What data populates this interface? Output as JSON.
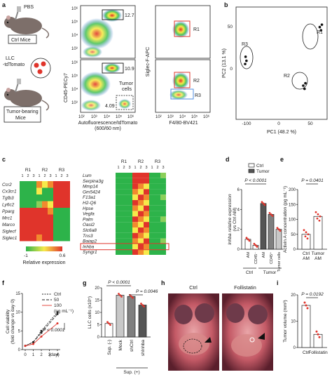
{
  "panel_letters": [
    "a",
    "b",
    "c",
    "d",
    "e",
    "f",
    "g",
    "h",
    "i"
  ],
  "panel_a": {
    "mouse_labels": [
      "PBS",
      "LLC\n-tdTomato"
    ],
    "box_labels": [
      "Ctrl Mice",
      "Tumor-bearing\nMice"
    ],
    "flow_axes": {
      "x1": "Autofluorescence/tdTomato",
      "x1b": "(600/60 nm)",
      "y1": "CD45-PECy7",
      "x2": "F4/80-BV421",
      "y2": "Siglec-F-APC"
    },
    "gate_values": [
      "12.7",
      "10.9",
      "4.09"
    ],
    "gate_names": [
      "R1",
      "R2",
      "R3"
    ],
    "tumor_text": [
      "Tumor",
      "cells"
    ],
    "tick_labels": [
      "10^2",
      "10^3",
      "10^4",
      "10^5",
      "10^6"
    ]
  },
  "panel_b": {
    "chart_data": {
      "type": "scatter",
      "xlabel": "PC1 (48.2 %)",
      "ylabel": "PC2 (13.1 %)",
      "x_ticks": [
        "-100",
        "0",
        "50"
      ],
      "y_ticks": [
        "50",
        "0"
      ],
      "groups": [
        {
          "name": "R1",
          "points": [
            [
              83,
              55
            ],
            [
              88,
              58
            ],
            [
              86,
              51
            ]
          ]
        },
        {
          "name": "R2",
          "points": [
            [
              45,
              -18
            ],
            [
              48,
              -22
            ],
            [
              50,
              -15
            ]
          ]
        },
        {
          "name": "R3",
          "points": [
            [
              -88,
              18
            ],
            [
              -86,
              13
            ],
            [
              -89,
              9
            ]
          ]
        }
      ]
    }
  },
  "panel_c": {
    "col_groups": [
      "R1",
      "R2",
      "R3"
    ],
    "rep_labels": [
      "1",
      "2",
      "3",
      "1",
      "2",
      "3",
      "1",
      "2",
      "3"
    ],
    "left_genes_top": [
      "Ccr2",
      "Cx3cr1",
      "Tgfb3",
      "Ly6c2"
    ],
    "left_genes_bottom": [
      "Pparg",
      "Mrc1",
      "Marco",
      "Siglecf",
      "Siglec1"
    ],
    "right_genes": [
      "Lum",
      "Serpina3g",
      "Mmp14",
      "Gm5424",
      "F13a1",
      "H2-Q6",
      "Hpse",
      "Vegfa",
      "Palm",
      "Oasl2",
      "Slc6a8",
      "Tns3",
      "Baiap2",
      "Inhba",
      "Syngr1"
    ],
    "highlight_gene": "Inhba",
    "legend_min": "-1",
    "legend_max": "0.6",
    "legend_title": "Relative expression"
  },
  "panel_d": {
    "legend": [
      "Ctrl",
      "Tumor"
    ],
    "ylabel": "Inhba relative expression",
    "ylabel2": "(vs Ctrl AM)",
    "pvalue": "P < 0.0001",
    "groups_x": [
      "Ctrl",
      "Tumor"
    ],
    "chart_data": {
      "type": "bar",
      "categories": [
        "AM",
        "CD45⁻",
        "AM",
        "CD45⁺",
        "Tumor cells"
      ],
      "values": [
        1.0,
        0.4,
        4.6,
        3.5,
        2.0
      ],
      "ylim": [
        0,
        6
      ],
      "y_ticks": [
        "0",
        "2",
        "4",
        "6"
      ]
    }
  },
  "panel_e": {
    "ylabel": "Activin A concentration (pg mL⁻¹)",
    "pvalue": "P = 0.0401",
    "chart_data": {
      "type": "bar",
      "categories": [
        "Ctrl AM",
        "Tumor AM"
      ],
      "values": [
        50,
        110
      ],
      "ylim": [
        0,
        200
      ],
      "y_ticks": [
        "0",
        "50",
        "100",
        "150",
        "200"
      ]
    }
  },
  "panel_f": {
    "ylabel": "Cell viability",
    "ylabel2": "(fold change vs day 0)",
    "xlabel": "(day)",
    "legend": [
      "Ctrl",
      "50",
      "100"
    ],
    "legend_unit": "(ng mL⁻¹)",
    "pvalue": "P < 0.0001",
    "chart_data": {
      "type": "line",
      "x": [
        0,
        1,
        2,
        4
      ],
      "series": [
        {
          "name": "Ctrl",
          "values": [
            1,
            2,
            5,
            10
          ]
        },
        {
          "name": "50",
          "values": [
            1,
            2,
            4.5,
            9.5
          ]
        },
        {
          "name": "100",
          "values": [
            1,
            1.5,
            3.5,
            7
          ]
        }
      ],
      "ylim": [
        0,
        15
      ],
      "y_ticks": [
        "0",
        "5",
        "10",
        "15"
      ],
      "x_ticks": [
        "0",
        "1",
        "2",
        "3",
        "4"
      ]
    }
  },
  "panel_g": {
    "ylabel": "LLC cells (x10⁵)",
    "pvalues": [
      "P < 0.0001",
      "P = 0.0046"
    ],
    "sup_label": "Sup. (+)",
    "chart_data": {
      "type": "bar",
      "categories": [
        "Sup. (-)",
        "Mock",
        "shCtrl",
        "shInhba"
      ],
      "values": [
        5.5,
        17,
        16.5,
        13
      ],
      "ylim": [
        0,
        20
      ],
      "y_ticks": [
        "0",
        "5",
        "10",
        "15",
        "20"
      ]
    }
  },
  "panel_h": {
    "labels": [
      "Ctrl",
      "Follistatin"
    ]
  },
  "panel_i": {
    "ylabel": "Tumor volume (mm³)",
    "pvalue": "P = 0.0192",
    "chart_data": {
      "type": "bar",
      "categories": [
        "Ctrl",
        "Follistatin"
      ],
      "values": [
        16,
        5
      ],
      "ylim": [
        0,
        20
      ],
      "y_ticks": [
        "0",
        "10",
        "20"
      ]
    }
  },
  "colors": {
    "red": "#e0342b",
    "green": "#2db34a",
    "yellow": "#f7e94a",
    "orange": "#f28a2e",
    "gray": "#7f7f7f",
    "darkgray": "#555555",
    "lightgray": "#c8c8c8"
  }
}
